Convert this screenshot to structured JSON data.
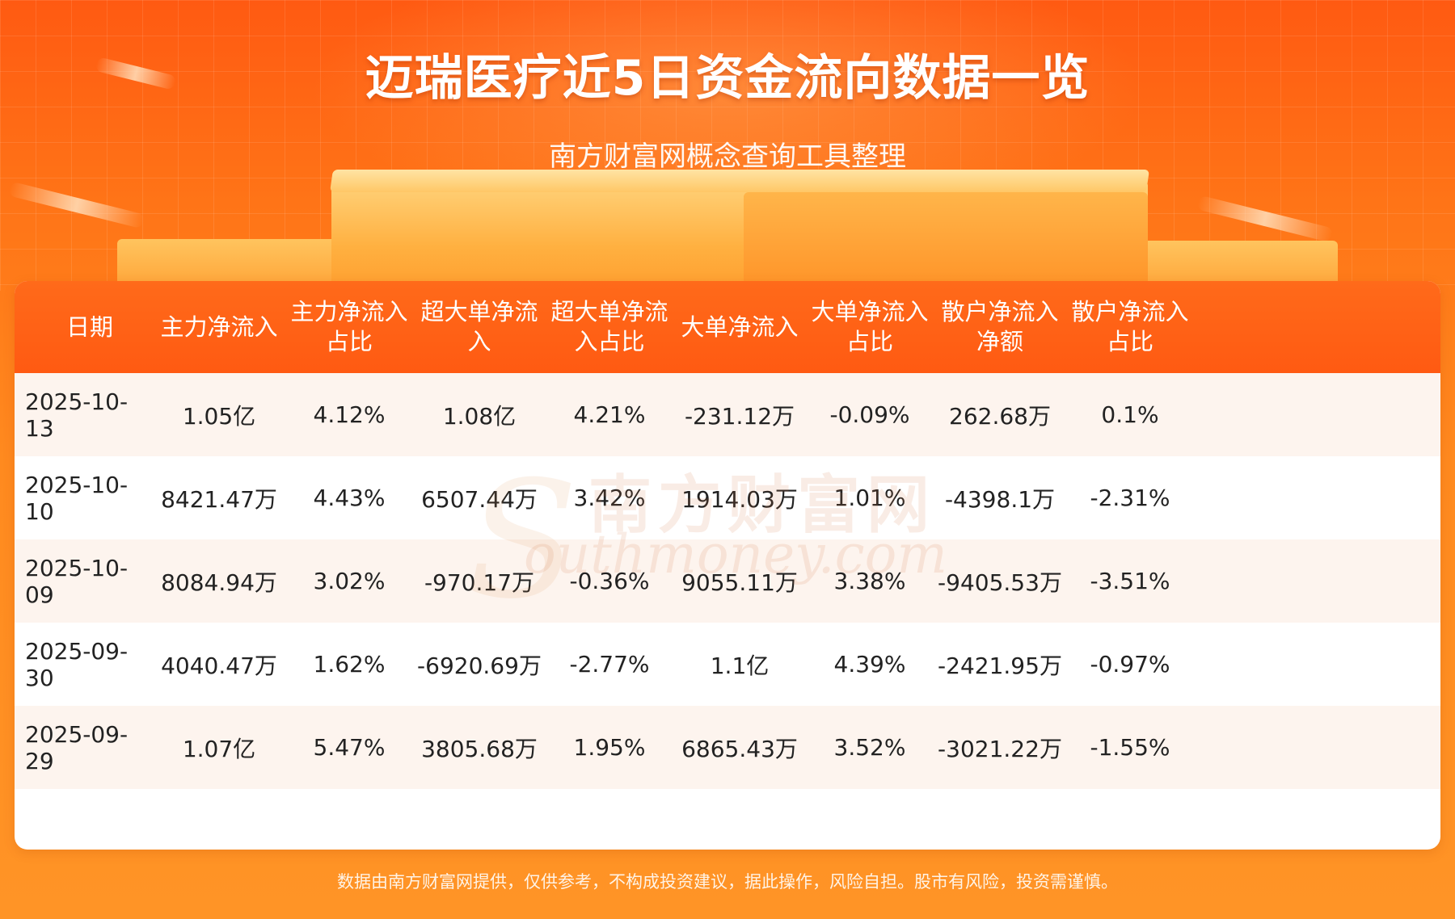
{
  "header": {
    "title": "迈瑞医疗近5日资金流向数据一览",
    "subtitle": "南方财富网概念查询工具整理"
  },
  "table": {
    "columns": [
      [
        "日期"
      ],
      [
        "主力净流入"
      ],
      [
        "主力净流入",
        "占比"
      ],
      [
        "超大单净流",
        "入"
      ],
      [
        "超大单净流",
        "入占比"
      ],
      [
        "大单净流入"
      ],
      [
        "大单净流入",
        "占比"
      ],
      [
        "散户净流入",
        "净额"
      ],
      [
        "散户净流入",
        "占比"
      ]
    ],
    "rows": [
      [
        "2025-10-13",
        "1.05亿",
        "4.12%",
        "1.08亿",
        "4.21%",
        "-231.12万",
        "-0.09%",
        "262.68万",
        "0.1%"
      ],
      [
        "2025-10-10",
        "8421.47万",
        "4.43%",
        "6507.44万",
        "3.42%",
        "1914.03万",
        "1.01%",
        "-4398.1万",
        "-2.31%"
      ],
      [
        "2025-10-09",
        "8084.94万",
        "3.02%",
        "-970.17万",
        "-0.36%",
        "9055.11万",
        "3.38%",
        "-9405.53万",
        "-3.51%"
      ],
      [
        "2025-09-30",
        "4040.47万",
        "1.62%",
        "-6920.69万",
        "-2.77%",
        "1.1亿",
        "4.39%",
        "-2421.95万",
        "-0.97%"
      ],
      [
        "2025-09-29",
        "1.07亿",
        "5.47%",
        "3805.68万",
        "1.95%",
        "6865.43万",
        "3.52%",
        "-3021.22万",
        "-1.55%"
      ]
    ]
  },
  "watermark": {
    "cn": "南方财富网",
    "en": "outhmoney.com",
    "letter": "S"
  },
  "footer": {
    "disclaimer": "数据由南方财富网提供，仅供参考，不构成投资建议，据此操作，风险自担。股市有风险，投资需谨慎。"
  },
  "colors": {
    "header_bg": "#ff5a12",
    "row_odd": "#fdf4ee",
    "row_even": "#ffffff",
    "text": "#222222"
  }
}
